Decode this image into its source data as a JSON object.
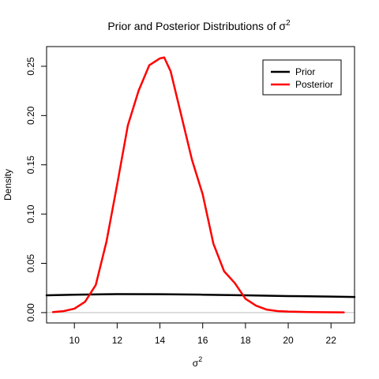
{
  "chart_data": {
    "type": "line",
    "title": "Prior and Posterior Distributions of σ",
    "title_superscript": "2",
    "xlabel": "σ",
    "xlabel_superscript": "2",
    "ylabel": "Density",
    "xlim": [
      8.7,
      23.1
    ],
    "ylim": [
      -0.0105,
      0.27
    ],
    "xticks": [
      10,
      12,
      14,
      16,
      18,
      20,
      22
    ],
    "yticks": [
      0.0,
      0.05,
      0.1,
      0.15,
      0.2,
      0.25
    ],
    "ytick_labels": [
      "0.00",
      "0.05",
      "0.10",
      "0.15",
      "0.20",
      "0.25"
    ],
    "grid": false,
    "legend_position": "top-right",
    "zero_line": {
      "y": 0,
      "color": "#bebebe"
    },
    "series": [
      {
        "name": "Prior",
        "color": "#000000",
        "x": [
          8.7,
          10,
          12,
          14,
          16,
          18,
          20,
          22,
          23.1
        ],
        "y": [
          0.0175,
          0.0182,
          0.0188,
          0.0187,
          0.0182,
          0.0175,
          0.0168,
          0.0162,
          0.0158
        ]
      },
      {
        "name": "Posterior",
        "color": "#ff0000",
        "x": [
          9.0,
          9.5,
          10.0,
          10.5,
          11.0,
          11.5,
          12.0,
          12.5,
          13.0,
          13.5,
          14.0,
          14.2,
          14.5,
          15.0,
          15.5,
          16.0,
          16.5,
          17.0,
          17.5,
          18.0,
          18.5,
          19.0,
          19.5,
          20.0,
          21.0,
          22.0,
          22.6
        ],
        "y": [
          0.0005,
          0.0015,
          0.004,
          0.011,
          0.028,
          0.072,
          0.13,
          0.19,
          0.225,
          0.251,
          0.258,
          0.259,
          0.245,
          0.2,
          0.155,
          0.12,
          0.07,
          0.042,
          0.03,
          0.014,
          0.007,
          0.003,
          0.0015,
          0.001,
          0.0005,
          0.0003,
          0.0002
        ]
      }
    ]
  }
}
